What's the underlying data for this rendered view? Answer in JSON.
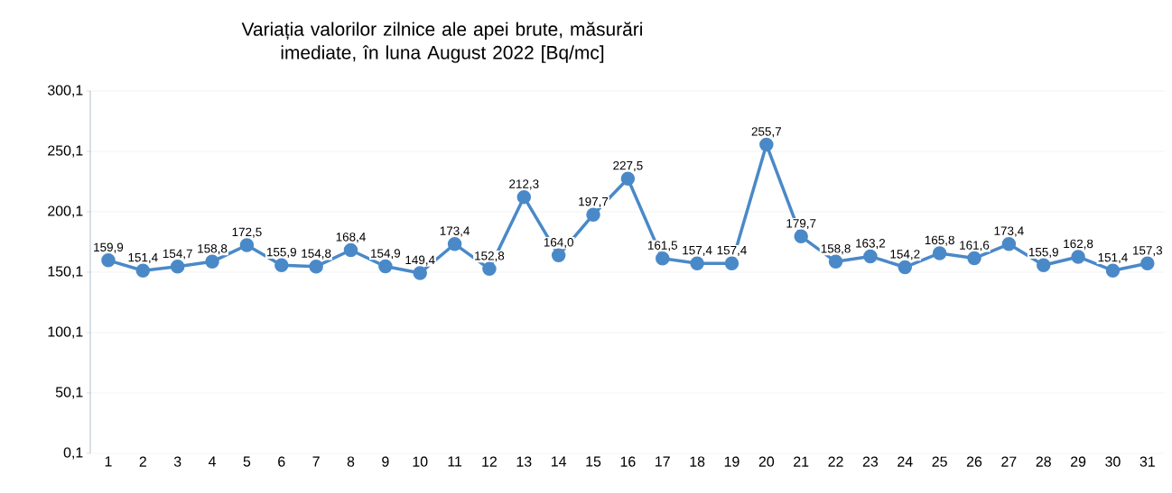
{
  "chart_data": {
    "type": "line",
    "title": "Variația valorilor zilnice ale apei brute, măsurări imediate,  în luna August 2022 [Bq/mc]",
    "categories": [
      "1",
      "2",
      "3",
      "4",
      "5",
      "6",
      "7",
      "8",
      "9",
      "10",
      "11",
      "12",
      "13",
      "14",
      "15",
      "16",
      "17",
      "18",
      "19",
      "20",
      "21",
      "22",
      "23",
      "24",
      "25",
      "26",
      "27",
      "28",
      "29",
      "30",
      "31"
    ],
    "values": [
      159.9,
      151.4,
      154.7,
      158.8,
      172.5,
      155.9,
      154.8,
      168.4,
      154.9,
      149.4,
      173.4,
      152.8,
      212.3,
      164.0,
      197.7,
      227.5,
      161.5,
      157.4,
      157.4,
      255.7,
      179.7,
      158.8,
      163.2,
      154.2,
      165.8,
      161.6,
      173.4,
      155.9,
      162.8,
      151.4,
      157.3
    ],
    "value_labels": [
      "159,9",
      "151,4",
      "154,7",
      "158,8",
      "172,5",
      "155,9",
      "154,8",
      "168,4",
      "154,9",
      "149,4",
      "173,4",
      "152,8",
      "212,3",
      "164,0",
      "197,7",
      "227,5",
      "161,5",
      "157,4",
      "157,4",
      "255,7",
      "179,7",
      "158,8",
      "163,2",
      "154,2",
      "165,8",
      "161,6",
      "173,4",
      "155,9",
      "162,8",
      "151,4",
      "157,3"
    ],
    "color": "#4a89c8",
    "ylim": [
      0.1,
      300.1
    ],
    "yticks": [
      {
        "value": 0.1,
        "label": "0,1"
      },
      {
        "value": 50.1,
        "label": "50,1"
      },
      {
        "value": 100.1,
        "label": "100,1"
      },
      {
        "value": 150.1,
        "label": "150,1"
      },
      {
        "value": 200.1,
        "label": "200,1"
      },
      {
        "value": 250.1,
        "label": "250,1"
      },
      {
        "value": 300.1,
        "label": "300,1"
      }
    ],
    "grid": "y",
    "marker": "circle",
    "line_style": "solid"
  }
}
